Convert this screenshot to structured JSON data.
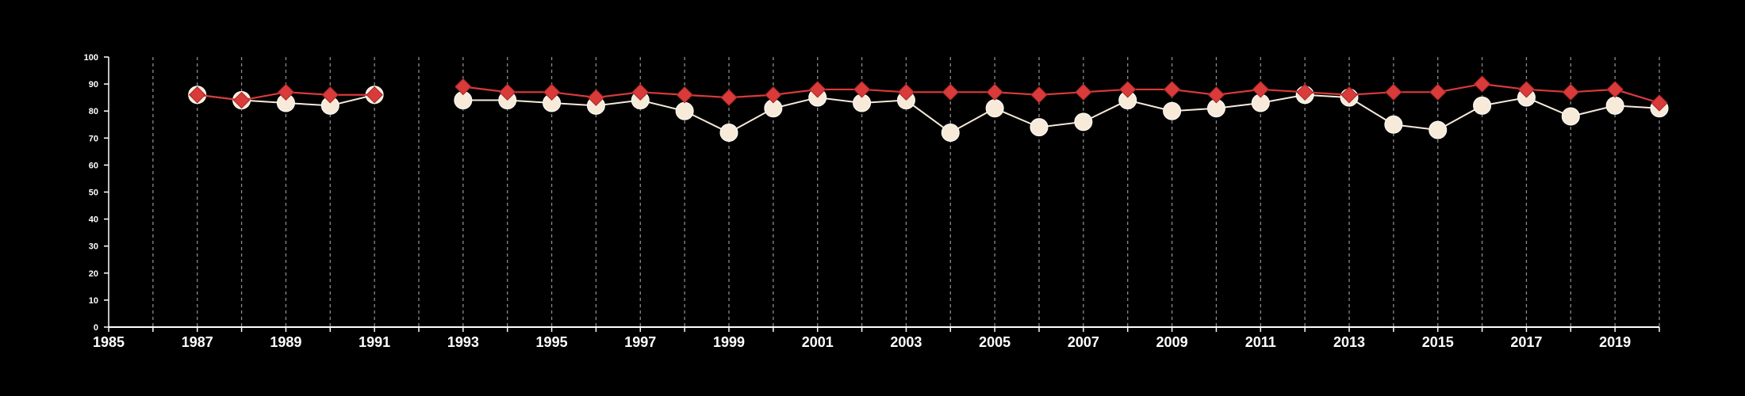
{
  "chart_data": {
    "type": "line",
    "title": "",
    "xlabel": "",
    "ylabel": "",
    "xlim": [
      1985,
      2020
    ],
    "ylim": [
      0,
      100
    ],
    "y_ticks": [
      "0",
      "10",
      "20",
      "30",
      "40",
      "50",
      "60",
      "70",
      "80",
      "90",
      "100"
    ],
    "x_ticks": [
      "1985",
      "1987",
      "1989",
      "1991",
      "1993",
      "1995",
      "1997",
      "1999",
      "2001",
      "2003",
      "2005",
      "2007",
      "2009",
      "2011",
      "2013",
      "2015",
      "2017",
      "2019"
    ],
    "grid": "vertical dashed lines at each year",
    "legend": "none",
    "series": [
      {
        "marker": "circle",
        "color": "#f7ead9",
        "points": [
          [
            1987,
            86
          ],
          [
            1988,
            84
          ],
          [
            1989,
            83
          ],
          [
            1990,
            82
          ],
          [
            1991,
            86
          ],
          [
            1993,
            84
          ],
          [
            1994,
            84
          ],
          [
            1995,
            83
          ],
          [
            1996,
            82
          ],
          [
            1997,
            84
          ],
          [
            1998,
            80
          ],
          [
            1999,
            72
          ],
          [
            2000,
            81
          ],
          [
            2001,
            85
          ],
          [
            2002,
            83
          ],
          [
            2003,
            84
          ],
          [
            2004,
            72
          ],
          [
            2005,
            81
          ],
          [
            2006,
            74
          ],
          [
            2007,
            76
          ],
          [
            2008,
            84
          ],
          [
            2009,
            80
          ],
          [
            2010,
            81
          ],
          [
            2011,
            83
          ],
          [
            2012,
            86
          ],
          [
            2013,
            85
          ],
          [
            2014,
            75
          ],
          [
            2015,
            73
          ],
          [
            2016,
            82
          ],
          [
            2017,
            85
          ],
          [
            2018,
            78
          ],
          [
            2019,
            82
          ],
          [
            2020,
            81
          ]
        ]
      },
      {
        "marker": "diamond",
        "color": "#d93a3a",
        "points": [
          [
            1987,
            86
          ],
          [
            1988,
            84
          ],
          [
            1989,
            87
          ],
          [
            1990,
            86
          ],
          [
            1991,
            86
          ],
          [
            1993,
            89
          ],
          [
            1994,
            87
          ],
          [
            1995,
            87
          ],
          [
            1996,
            85
          ],
          [
            1997,
            87
          ],
          [
            1998,
            86
          ],
          [
            1999,
            85
          ],
          [
            2000,
            86
          ],
          [
            2001,
            88
          ],
          [
            2002,
            88
          ],
          [
            2003,
            87
          ],
          [
            2004,
            87
          ],
          [
            2005,
            87
          ],
          [
            2006,
            86
          ],
          [
            2007,
            87
          ],
          [
            2008,
            88
          ],
          [
            2009,
            88
          ],
          [
            2010,
            86
          ],
          [
            2011,
            88
          ],
          [
            2012,
            87
          ],
          [
            2013,
            86
          ],
          [
            2014,
            87
          ],
          [
            2015,
            87
          ],
          [
            2016,
            90
          ],
          [
            2017,
            88
          ],
          [
            2018,
            87
          ],
          [
            2019,
            88
          ],
          [
            2020,
            83
          ]
        ]
      }
    ]
  }
}
